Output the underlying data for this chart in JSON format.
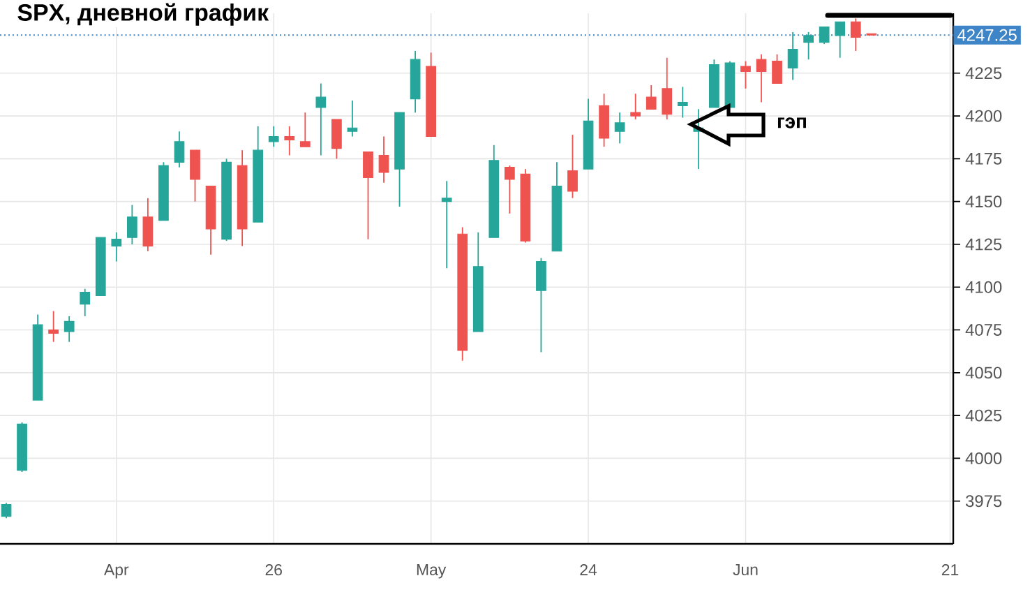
{
  "chart_data": {
    "type": "candlestick",
    "title": "SPX, дневной график",
    "categories": [
      null,
      null,
      null,
      null,
      null,
      null,
      null,
      "Apr",
      null,
      null,
      null,
      null,
      null,
      null,
      null,
      null,
      null,
      "26",
      null,
      null,
      null,
      null,
      null,
      null,
      null,
      null,
      null,
      "May",
      null,
      null,
      null,
      null,
      null,
      null,
      null,
      null,
      null,
      "24",
      null,
      null,
      null,
      null,
      null,
      null,
      null,
      null,
      null,
      "Jun",
      null,
      null,
      null,
      null,
      null,
      null,
      null,
      null,
      null,
      null,
      null,
      null,
      "21"
    ],
    "ohlc": [
      [
        3966,
        3974,
        3965,
        3973
      ],
      [
        3993,
        4021,
        3992,
        4020
      ],
      [
        4034,
        4084,
        4034,
        4078
      ],
      [
        4075,
        4086,
        4068,
        4073
      ],
      [
        4074,
        4083,
        4068,
        4080
      ],
      [
        4090,
        4099,
        4083,
        4097
      ],
      [
        4095,
        4129,
        4095,
        4129
      ],
      [
        4124,
        4132,
        4115,
        4128
      ],
      [
        4129,
        4148,
        4125,
        4141
      ],
      [
        4141,
        4152,
        4121,
        4124
      ],
      [
        4139,
        4173,
        4139,
        4171
      ],
      [
        4173,
        4191,
        4170,
        4185
      ],
      [
        4180,
        4180,
        4150,
        4163
      ],
      [
        4159,
        4159,
        4119,
        4134
      ],
      [
        4128,
        4175,
        4127,
        4173
      ],
      [
        4171,
        4180,
        4124,
        4134
      ],
      [
        4138,
        4194,
        4138,
        4180
      ],
      [
        4185,
        4194,
        4182,
        4188
      ],
      [
        4188,
        4194,
        4177,
        4186
      ],
      [
        4185,
        4202,
        4182,
        4182
      ],
      [
        4205,
        4219,
        4177,
        4211
      ],
      [
        4198,
        4198,
        4175,
        4181
      ],
      [
        4191,
        4209,
        4188,
        4193
      ],
      [
        4179,
        4179,
        4128,
        4164
      ],
      [
        4177,
        4188,
        4161,
        4167
      ],
      [
        4169,
        4202,
        4147,
        4202
      ],
      [
        4210,
        4238,
        4202,
        4233
      ],
      [
        4229,
        4237,
        4188,
        4188
      ],
      [
        4150,
        4162,
        4111,
        4152
      ],
      [
        4131,
        4135,
        4057,
        4063
      ],
      [
        4074,
        4132,
        4074,
        4112
      ],
      [
        4129,
        4183,
        4129,
        4174
      ],
      [
        4170,
        4171,
        4143,
        4163
      ],
      [
        4166,
        4169,
        4126,
        4127
      ],
      [
        4098,
        4117,
        4062,
        4115
      ],
      [
        4121,
        4173,
        4121,
        4159
      ],
      [
        4168,
        4189,
        4152,
        4156
      ],
      [
        4169,
        4210,
        4169,
        4197
      ],
      [
        4206,
        4213,
        4182,
        4187
      ],
      [
        4191,
        4202,
        4184,
        4196
      ],
      [
        4202,
        4213,
        4198,
        4200
      ],
      [
        4211,
        4218,
        4204,
        4204
      ],
      [
        4216,
        4234,
        4198,
        4201
      ],
      [
        4206,
        4217,
        4199,
        4208
      ],
      [
        4191,
        4204,
        4169,
        4193
      ],
      [
        4205,
        4233,
        4205,
        4230
      ],
      [
        4205,
        4232,
        4205,
        4231
      ],
      [
        4229,
        4232,
        4216,
        4226
      ],
      [
        4233,
        4236,
        4208,
        4226
      ],
      [
        4232,
        4236,
        4219,
        4219
      ],
      [
        4228,
        4249,
        4221,
        4239
      ],
      [
        4243,
        4249,
        4233,
        4247
      ],
      [
        4243,
        4252,
        4242,
        4252
      ],
      [
        4247,
        4255,
        4234,
        4255
      ],
      [
        4255,
        4257,
        4238,
        4246
      ],
      [
        4248,
        4248,
        4247,
        4247.25
      ],
      null,
      null,
      null,
      null,
      null
    ],
    "colors": [
      "#26a69a",
      "#26a69a",
      "#26a69a",
      "#ef5350",
      "#26a69a",
      "#26a69a",
      "#26a69a",
      "#26a69a",
      "#26a69a",
      "#ef5350",
      "#26a69a",
      "#26a69a",
      "#ef5350",
      "#ef5350",
      "#26a69a",
      "#ef5350",
      "#26a69a",
      "#26a69a",
      "#ef5350",
      "#ef5350",
      "#26a69a",
      "#ef5350",
      "#26a69a",
      "#ef5350",
      "#ef5350",
      "#26a69a",
      "#26a69a",
      "#ef5350",
      "#26a69a",
      "#ef5350",
      "#26a69a",
      "#26a69a",
      "#ef5350",
      "#ef5350",
      "#26a69a",
      "#26a69a",
      "#ef5350",
      "#26a69a",
      "#ef5350",
      "#26a69a",
      "#ef5350",
      "#ef5350",
      "#ef5350",
      "#26a69a",
      "#26a69a",
      "#26a69a",
      "#26a69a",
      "#ef5350",
      "#ef5350",
      "#ef5350",
      "#26a69a",
      "#26a69a",
      "#26a69a",
      "#26a69a",
      "#ef5350",
      "#ef5350",
      null,
      null,
      null,
      null,
      null
    ],
    "ylim": [
      3950,
      4260
    ],
    "yticks": [
      3975,
      4000,
      4025,
      4050,
      4075,
      4100,
      4125,
      4150,
      4175,
      4200,
      4225
    ],
    "grid": true,
    "ref_lines": [
      {
        "axis": "y",
        "value": 4247.25,
        "label": "4247.25",
        "color": "#3d85c6",
        "line_style": "dotted"
      }
    ],
    "annotations": [
      "гэп"
    ]
  }
}
